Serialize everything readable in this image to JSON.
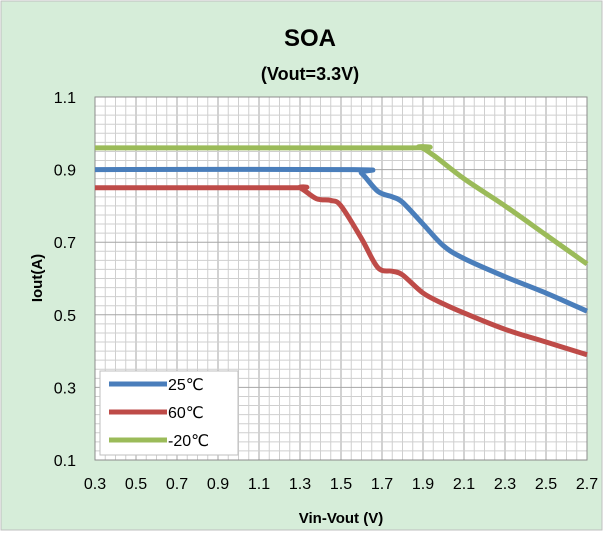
{
  "chart_data": {
    "type": "line",
    "title": "SOA",
    "subtitle": "(Vout=3.3V)",
    "xlabel": "Vin-Vout  (V)",
    "ylabel": "Iout(A)",
    "xlim": [
      0.3,
      2.7
    ],
    "ylim": [
      0.1,
      1.1
    ],
    "x_ticks": [
      "0.3",
      "0.5",
      "0.7",
      "0.9",
      "1.1",
      "1.3",
      "1.5",
      "1.7",
      "1.9",
      "2.1",
      "2.3",
      "2.5",
      "2.7"
    ],
    "y_ticks": [
      "0.1",
      "0.3",
      "0.5",
      "0.7",
      "0.9",
      "1.1"
    ],
    "grid": true,
    "legend_position": "bottom-left",
    "background_color": "#d6edd9",
    "series": [
      {
        "name": "25℃",
        "color": "#4a7ebb",
        "points": [
          [
            0.3,
            0.9
          ],
          [
            1.55,
            0.9
          ],
          [
            1.6,
            0.89
          ],
          [
            1.68,
            0.84
          ],
          [
            1.75,
            0.825
          ],
          [
            1.8,
            0.81
          ],
          [
            1.9,
            0.75
          ],
          [
            2.0,
            0.69
          ],
          [
            2.1,
            0.655
          ],
          [
            2.3,
            0.605
          ],
          [
            2.5,
            0.56
          ],
          [
            2.7,
            0.51
          ]
        ]
      },
      {
        "name": "60℃",
        "color": "#be4b48",
        "points": [
          [
            0.3,
            0.85
          ],
          [
            1.25,
            0.85
          ],
          [
            1.3,
            0.85
          ],
          [
            1.38,
            0.82
          ],
          [
            1.45,
            0.815
          ],
          [
            1.5,
            0.8
          ],
          [
            1.6,
            0.71
          ],
          [
            1.68,
            0.63
          ],
          [
            1.75,
            0.62
          ],
          [
            1.8,
            0.61
          ],
          [
            1.9,
            0.56
          ],
          [
            2.0,
            0.53
          ],
          [
            2.1,
            0.505
          ],
          [
            2.3,
            0.46
          ],
          [
            2.5,
            0.425
          ],
          [
            2.7,
            0.39
          ]
        ]
      },
      {
        "name": "-20℃",
        "color": "#9bbb59",
        "points": [
          [
            0.3,
            0.96
          ],
          [
            1.8,
            0.96
          ],
          [
            1.88,
            0.962
          ],
          [
            1.95,
            0.94
          ],
          [
            2.1,
            0.875
          ],
          [
            2.3,
            0.8
          ],
          [
            2.5,
            0.72
          ],
          [
            2.7,
            0.64
          ]
        ]
      }
    ]
  }
}
